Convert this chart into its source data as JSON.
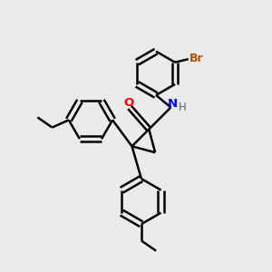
{
  "background_color": "#ebebeb",
  "bond_color": "#000000",
  "bond_width": 1.8,
  "atom_colors": {
    "O": "#ff0000",
    "N": "#0000ff",
    "H": "#606060",
    "Br": "#b05000",
    "C": "#000000"
  },
  "figsize": [
    3.0,
    3.0
  ],
  "dpi": 100
}
